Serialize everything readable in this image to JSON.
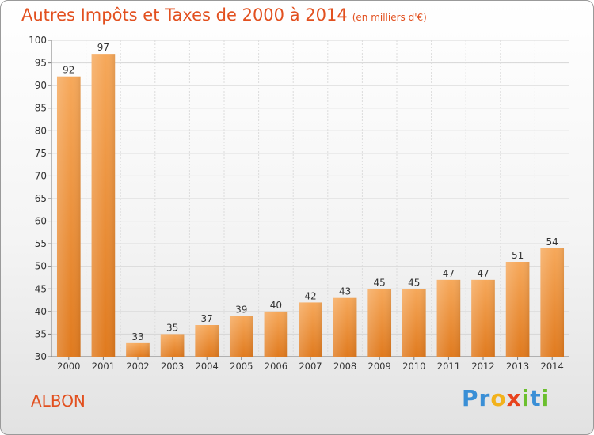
{
  "header": {
    "title": "Autres Impôts et Taxes de 2000 à 2014",
    "subtitle": "(en milliers d'€)"
  },
  "footer": {
    "place": "ALBON",
    "logo_letters": [
      "P",
      "r",
      "o",
      "x",
      "i",
      "t",
      "i"
    ]
  },
  "colors": {
    "title": "#e2501f",
    "bar_top": "#f6a85a",
    "bar_bottom": "#e07a1e",
    "logo": [
      "#3a8fd6",
      "#3a8fd6",
      "#f2b21c",
      "#e8431d",
      "#6bbf2e",
      "#3a8fd6",
      "#6bbf2e"
    ]
  },
  "chart_data": {
    "type": "bar",
    "categories": [
      "2000",
      "2001",
      "2002",
      "2003",
      "2004",
      "2005",
      "2006",
      "2007",
      "2008",
      "2009",
      "2010",
      "2011",
      "2012",
      "2013",
      "2014"
    ],
    "values": [
      92,
      97,
      33,
      35,
      37,
      39,
      40,
      42,
      43,
      45,
      45,
      47,
      47,
      51,
      54
    ],
    "ylim": [
      30,
      100
    ],
    "yticks": [
      30,
      35,
      40,
      45,
      50,
      55,
      60,
      65,
      70,
      75,
      80,
      85,
      90,
      95,
      100
    ],
    "grid": true
  }
}
